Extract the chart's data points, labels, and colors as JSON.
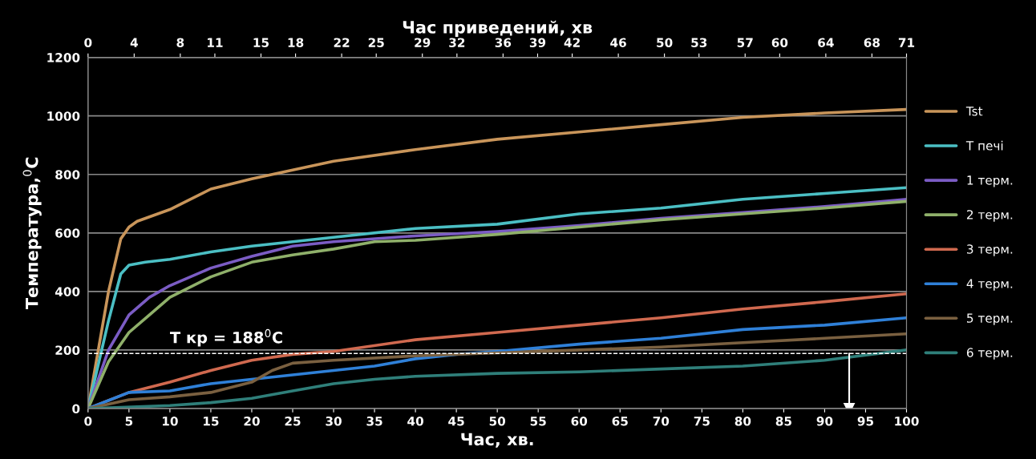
{
  "chart_data": {
    "type": "line",
    "xlabel": "Час, хв.",
    "x2label": "Час приведений, хв",
    "ylabel": "Температура,$^{0}$C",
    "xlim": [
      0,
      100
    ],
    "xticks": [
      0,
      5,
      10,
      15,
      20,
      25,
      30,
      35,
      40,
      45,
      50,
      55,
      60,
      65,
      70,
      75,
      80,
      85,
      90,
      95,
      100
    ],
    "x2lim": [
      0,
      71
    ],
    "x2ticks": [
      0,
      4,
      8,
      11,
      15,
      18,
      22,
      25,
      29,
      32,
      36,
      39,
      42,
      46,
      50,
      53,
      57,
      60,
      64,
      68,
      71
    ],
    "ylim": [
      0,
      1200
    ],
    "yticks": [
      0,
      200,
      400,
      600,
      800,
      1000,
      1200
    ],
    "grid": "y",
    "legend": "right",
    "marker": "none",
    "line_style": "solid",
    "series": [
      {
        "name": "Tst",
        "color": "#c9955a",
        "x": [
          0,
          2.5,
          4,
          5,
          6,
          10,
          15,
          20,
          25,
          30,
          40,
          50,
          60,
          70,
          80,
          90,
          100
        ],
        "values": [
          0,
          400,
          580,
          620,
          640,
          680,
          750,
          785,
          815,
          845,
          885,
          920,
          945,
          970,
          995,
          1010,
          1022
        ]
      },
      {
        "name": "T печі",
        "color": "#4bbfc4",
        "x": [
          0,
          2.5,
          4,
          5,
          7,
          10,
          15,
          20,
          25,
          30,
          40,
          50,
          60,
          70,
          80,
          90,
          100
        ],
        "values": [
          0,
          300,
          460,
          490,
          500,
          510,
          535,
          555,
          570,
          585,
          615,
          630,
          665,
          685,
          715,
          735,
          755
        ]
      },
      {
        "name": "1 терм.",
        "color": "#7b5cc4",
        "x": [
          0,
          2.5,
          5,
          7.5,
          10,
          15,
          20,
          25,
          30,
          40,
          50,
          60,
          70,
          80,
          90,
          100
        ],
        "values": [
          0,
          200,
          320,
          380,
          420,
          480,
          520,
          555,
          570,
          590,
          605,
          625,
          650,
          670,
          690,
          715
        ]
      },
      {
        "name": "2 терм.",
        "color": "#8fb06a",
        "x": [
          0,
          2.5,
          5,
          7.5,
          10,
          15,
          20,
          25,
          30,
          35,
          40,
          50,
          60,
          70,
          80,
          90,
          100
        ],
        "values": [
          0,
          160,
          260,
          320,
          380,
          450,
          500,
          525,
          545,
          570,
          575,
          595,
          620,
          645,
          665,
          685,
          708
        ]
      },
      {
        "name": "3 терм.",
        "color": "#d0694f",
        "x": [
          0,
          5,
          10,
          15,
          20,
          25,
          30,
          40,
          50,
          60,
          70,
          80,
          90,
          100
        ],
        "values": [
          0,
          55,
          90,
          130,
          165,
          185,
          195,
          235,
          260,
          285,
          310,
          340,
          365,
          392
        ]
      },
      {
        "name": "4 терм.",
        "color": "#2f80d8",
        "x": [
          0,
          5,
          10,
          15,
          20,
          25,
          30,
          35,
          40,
          45,
          50,
          60,
          70,
          80,
          90,
          100
        ],
        "values": [
          0,
          55,
          60,
          85,
          100,
          115,
          130,
          145,
          170,
          185,
          195,
          220,
          240,
          270,
          285,
          310
        ]
      },
      {
        "name": "5 терм.",
        "color": "#7a6040",
        "x": [
          0,
          5,
          10,
          15,
          20,
          22.5,
          25,
          30,
          40,
          50,
          60,
          70,
          80,
          90,
          100
        ],
        "values": [
          0,
          30,
          40,
          55,
          90,
          130,
          155,
          165,
          180,
          190,
          200,
          210,
          225,
          240,
          255
        ]
      },
      {
        "name": "6 терм.",
        "color": "#2f7f7a",
        "x": [
          0,
          10,
          15,
          20,
          25,
          30,
          35,
          40,
          50,
          60,
          70,
          80,
          90,
          100
        ],
        "values": [
          0,
          10,
          20,
          35,
          60,
          85,
          100,
          110,
          120,
          125,
          135,
          145,
          165,
          200
        ]
      },
      {
        "color": "#ffffff",
        "x": [
          93,
          93
        ],
        "values": [
          188,
          0
        ],
        "marker": "triangle"
      }
    ],
    "ref_lines": [
      {
        "axis": "y",
        "value": 188,
        "label": "T кр = 188$^{0}$C",
        "color": "#ffffff",
        "line_style": "dashed"
      }
    ]
  }
}
